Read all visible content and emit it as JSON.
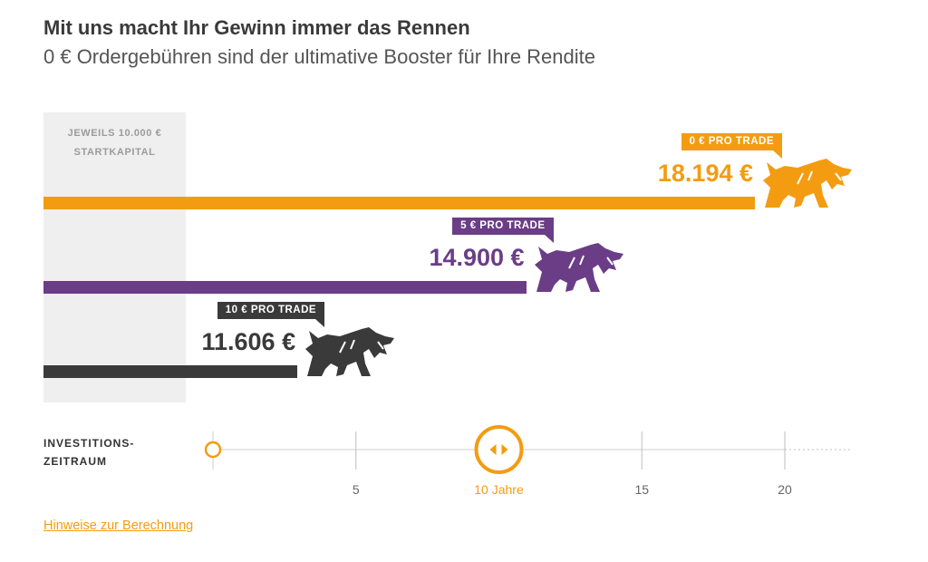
{
  "header": {
    "title": "Mit uns macht Ihr Gewinn immer das Rennen",
    "subtitle": "0 € Ordergebühren sind der ultimative Booster für Ihre Rendite"
  },
  "start_capital": {
    "line1": "JEWEILS 10.000 €",
    "line2": "STARTKAPITAL"
  },
  "scenarios": [
    {
      "tag": "0 € PRO TRADE",
      "value_label": "18.194 €",
      "value": 18194,
      "color": "#f39c12"
    },
    {
      "tag": "5 € PRO TRADE",
      "value_label": "14.900 €",
      "value": 14900,
      "color": "#6b3d87"
    },
    {
      "tag": "10 € PRO TRADE",
      "value_label": "11.606 €",
      "value": 11606,
      "color": "#3a3a3a"
    }
  ],
  "slider": {
    "label_line1": "INVESTITIONS-",
    "label_line2": "ZEITRAUM",
    "min": 0,
    "max": 20,
    "current": 10,
    "ticks": [
      {
        "value": 5,
        "label": "5"
      },
      {
        "value": 10,
        "label": "10 Jahre"
      },
      {
        "value": 15,
        "label": "15"
      },
      {
        "value": 20,
        "label": "20"
      }
    ],
    "accent": "#f39c12"
  },
  "footer": {
    "link": "Hinweise zur Berechnung"
  },
  "chart_data": {
    "type": "bar",
    "orientation": "horizontal",
    "title": "Mit uns macht Ihr Gewinn immer das Rennen",
    "subtitle": "0 € Ordergebühren sind der ultimative Booster für Ihre Rendite",
    "categories": [
      "0 € PRO TRADE",
      "5 € PRO TRADE",
      "10 € PRO TRADE"
    ],
    "values": [
      18194,
      14900,
      11606
    ],
    "value_labels": [
      "18.194 €",
      "14.900 €",
      "11.606 €"
    ],
    "baseline": 10000,
    "baseline_label": "JEWEILS 10.000 € STARTKAPITAL",
    "xlim": [
      10000,
      18194
    ],
    "period_years": 10
  }
}
